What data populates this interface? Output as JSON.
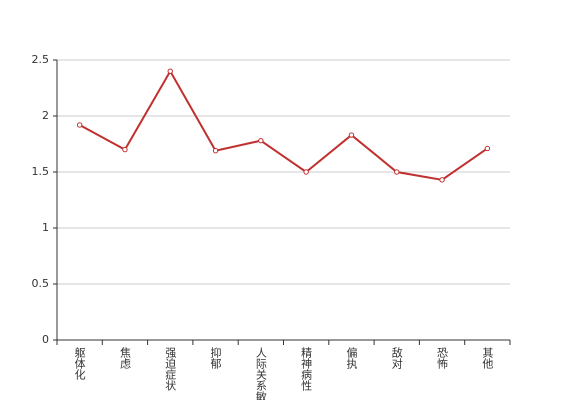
{
  "chart_data": {
    "type": "line",
    "categories": [
      "躯体化",
      "焦虑",
      "强迫症状",
      "抑郁",
      "人际关系敏感",
      "精神病性",
      "偏执",
      "敌对",
      "恐怖",
      "其他"
    ],
    "values": [
      1.92,
      1.7,
      2.4,
      1.69,
      1.78,
      1.5,
      1.83,
      1.5,
      1.43,
      1.71
    ],
    "color": "#c0302f",
    "ylim": [
      0,
      2.5
    ],
    "yticks": [
      0,
      0.5,
      1,
      1.5,
      2,
      2.5
    ],
    "grid": true
  }
}
